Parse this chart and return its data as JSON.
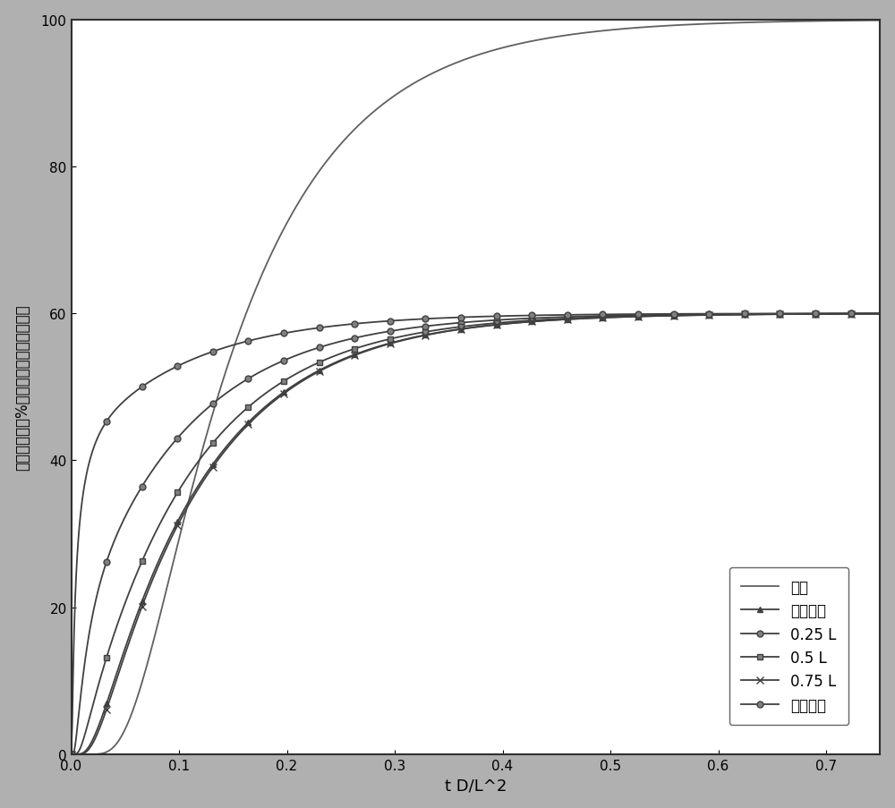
{
  "xlabel": "t D/L^2",
  "ylabel": "出口流出物（%稳定态参照出口流出物）",
  "xlim": [
    0.0,
    0.75
  ],
  "ylim": [
    0,
    100
  ],
  "xticks": [
    0.0,
    0.1,
    0.2,
    0.3,
    0.4,
    0.5,
    0.6,
    0.7
  ],
  "yticks": [
    0,
    20,
    40,
    60,
    80,
    100
  ],
  "bg_color": "#b0b0b0",
  "plot_bg_color": "#ffffff",
  "line_color": "#404040",
  "legend_labels": [
    "参照",
    "外部边缘",
    "0.25 L",
    "0.5 L",
    "0.75 L",
    "内部边缘"
  ],
  "line_width": 1.3,
  "marker_every": 35,
  "ylabel_box_color": "#d8d8d8"
}
